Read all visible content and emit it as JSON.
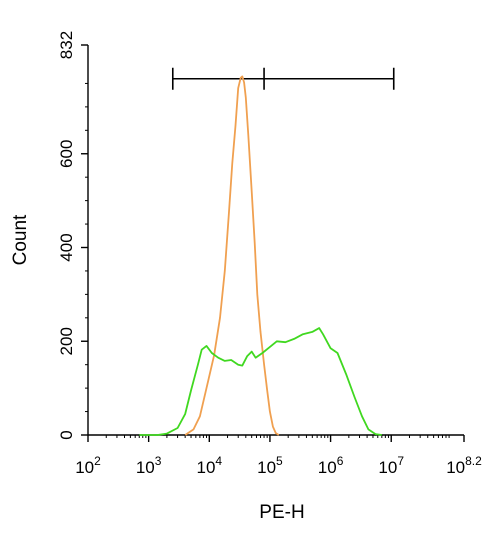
{
  "chart_data": {
    "type": "line",
    "title": "",
    "xlabel": "PE-H",
    "ylabel": "Count",
    "x_scale": "log10",
    "xlim": [
      100,
      158489319
    ],
    "ylim": [
      0,
      832
    ],
    "x_ticks": [
      {
        "base": "10",
        "exp": "2",
        "value": 100
      },
      {
        "base": "10",
        "exp": "3",
        "value": 1000
      },
      {
        "base": "10",
        "exp": "4",
        "value": 10000
      },
      {
        "base": "10",
        "exp": "5",
        "value": 100000
      },
      {
        "base": "10",
        "exp": "6",
        "value": 1000000
      },
      {
        "base": "10",
        "exp": "7",
        "value": 10000000
      },
      {
        "base": "10",
        "exp": "8.2",
        "value": 158489319
      }
    ],
    "y_ticks": [
      {
        "label": "0",
        "value": 0
      },
      {
        "label": "200",
        "value": 200
      },
      {
        "label": "400",
        "value": 400
      },
      {
        "label": "600",
        "value": 600
      },
      {
        "label": "832",
        "value": 832
      }
    ],
    "gate": {
      "start": 2500,
      "mid": 80000,
      "end": 11000000,
      "y": 760
    },
    "series": [
      {
        "color": "#f0a050",
        "points": [
          [
            4000,
            0
          ],
          [
            5500,
            12
          ],
          [
            7000,
            40
          ],
          [
            9000,
            100
          ],
          [
            12000,
            170
          ],
          [
            15000,
            250
          ],
          [
            18000,
            350
          ],
          [
            21000,
            470
          ],
          [
            24000,
            580
          ],
          [
            27000,
            660
          ],
          [
            30000,
            740
          ],
          [
            33000,
            762
          ],
          [
            35000,
            765
          ],
          [
            37500,
            752
          ],
          [
            40000,
            720
          ],
          [
            44000,
            640
          ],
          [
            50000,
            520
          ],
          [
            56000,
            410
          ],
          [
            62000,
            300
          ],
          [
            70000,
            220
          ],
          [
            80000,
            150
          ],
          [
            90000,
            95
          ],
          [
            100000,
            50
          ],
          [
            112000,
            18
          ],
          [
            125000,
            4
          ],
          [
            140000,
            0
          ]
        ]
      },
      {
        "color": "#40d820",
        "points": [
          [
            700,
            0
          ],
          [
            1400,
            0
          ],
          [
            2000,
            3
          ],
          [
            3000,
            15
          ],
          [
            4000,
            45
          ],
          [
            5000,
            95
          ],
          [
            6500,
            150
          ],
          [
            7500,
            182
          ],
          [
            9000,
            190
          ],
          [
            11000,
            175
          ],
          [
            14000,
            165
          ],
          [
            18000,
            158
          ],
          [
            23000,
            160
          ],
          [
            30000,
            150
          ],
          [
            35000,
            148
          ],
          [
            42000,
            168
          ],
          [
            50000,
            178
          ],
          [
            58000,
            165
          ],
          [
            75000,
            175
          ],
          [
            100000,
            188
          ],
          [
            130000,
            200
          ],
          [
            180000,
            198
          ],
          [
            250000,
            205
          ],
          [
            350000,
            215
          ],
          [
            500000,
            220
          ],
          [
            650000,
            228
          ],
          [
            750000,
            215
          ],
          [
            1000000,
            185
          ],
          [
            1300000,
            175
          ],
          [
            1800000,
            130
          ],
          [
            2500000,
            80
          ],
          [
            3300000,
            40
          ],
          [
            4200000,
            12
          ],
          [
            5500000,
            2
          ],
          [
            7000000,
            0
          ]
        ]
      }
    ],
    "grid": false,
    "legend": "none"
  }
}
